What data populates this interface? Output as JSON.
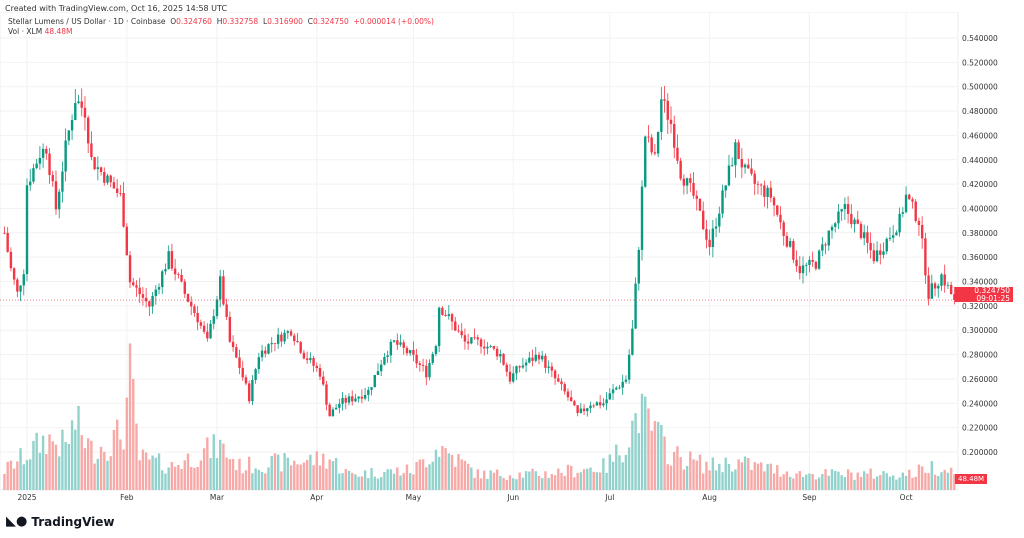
{
  "created": "Created with TradingView.com, Oct 16, 2025 14:58 UTC",
  "legend": {
    "symbol": "Stellar Lumens / US Dollar · 1D · Coinbase",
    "o_label": "O",
    "o": "0.324760",
    "h_label": "H",
    "h": "0.332758",
    "l_label": "L",
    "l": "0.316900",
    "c_label": "C",
    "c": "0.324750",
    "change": "+0.000014 (+0.00%)",
    "vol_label": "Vol · XLM",
    "vol": "48.48M"
  },
  "last_price": "0.324750",
  "countdown": "09:01:25",
  "brand": "TradingView",
  "colors": {
    "up": "#089981",
    "down": "#f23645",
    "up_vol": "#92d2cc",
    "down_vol": "#f7a9a7"
  },
  "chart_data": {
    "type": "candlestick",
    "title": "Stellar Lumens / US Dollar · 1D · Coinbase",
    "ylim": [
      0.19,
      0.545
    ],
    "y_ticks": [
      "0.540000",
      "0.520000",
      "0.500000",
      "0.480000",
      "0.460000",
      "0.440000",
      "0.420000",
      "0.400000",
      "0.380000",
      "0.360000",
      "0.340000",
      "0.320000",
      "0.300000",
      "0.280000",
      "0.260000",
      "0.240000",
      "0.220000",
      "0.200000"
    ],
    "x_ticks": [
      {
        "label": "2025",
        "day": 0
      },
      {
        "label": "Feb",
        "day": 31
      },
      {
        "label": "Mar",
        "day": 59
      },
      {
        "label": "Apr",
        "day": 90
      },
      {
        "label": "May",
        "day": 120
      },
      {
        "label": "Jun",
        "day": 151
      },
      {
        "label": "Jul",
        "day": 181
      },
      {
        "label": "Aug",
        "day": 212
      },
      {
        "label": "Sep",
        "day": 243
      },
      {
        "label": "Oct",
        "day": 273
      }
    ],
    "day_range": [
      -7,
      288
    ],
    "close_anchors_day_price": [
      [
        -7,
        0.38
      ],
      [
        -5,
        0.35
      ],
      [
        -3,
        0.33
      ],
      [
        -1,
        0.35
      ],
      [
        0,
        0.42
      ],
      [
        4,
        0.445
      ],
      [
        6,
        0.45
      ],
      [
        9,
        0.4
      ],
      [
        12,
        0.45
      ],
      [
        15,
        0.49
      ],
      [
        18,
        0.48
      ],
      [
        20,
        0.44
      ],
      [
        23,
        0.43
      ],
      [
        26,
        0.42
      ],
      [
        29,
        0.41
      ],
      [
        30,
        0.39
      ],
      [
        32,
        0.34
      ],
      [
        35,
        0.33
      ],
      [
        38,
        0.32
      ],
      [
        41,
        0.34
      ],
      [
        44,
        0.36
      ],
      [
        49,
        0.33
      ],
      [
        53,
        0.31
      ],
      [
        56,
        0.29
      ],
      [
        60,
        0.34
      ],
      [
        63,
        0.29
      ],
      [
        66,
        0.27
      ],
      [
        69,
        0.245
      ],
      [
        72,
        0.28
      ],
      [
        76,
        0.29
      ],
      [
        82,
        0.3
      ],
      [
        86,
        0.28
      ],
      [
        91,
        0.265
      ],
      [
        94,
        0.23
      ],
      [
        97,
        0.24
      ],
      [
        102,
        0.245
      ],
      [
        106,
        0.25
      ],
      [
        111,
        0.28
      ],
      [
        114,
        0.29
      ],
      [
        119,
        0.28
      ],
      [
        124,
        0.265
      ],
      [
        127,
        0.29
      ],
      [
        128,
        0.32
      ],
      [
        131,
        0.31
      ],
      [
        136,
        0.29
      ],
      [
        141,
        0.29
      ],
      [
        147,
        0.28
      ],
      [
        150,
        0.26
      ],
      [
        153,
        0.27
      ],
      [
        159,
        0.28
      ],
      [
        164,
        0.26
      ],
      [
        168,
        0.245
      ],
      [
        171,
        0.23
      ],
      [
        175,
        0.24
      ],
      [
        179,
        0.24
      ],
      [
        182,
        0.25
      ],
      [
        186,
        0.26
      ],
      [
        188,
        0.3
      ],
      [
        190,
        0.37
      ],
      [
        192,
        0.46
      ],
      [
        195,
        0.44
      ],
      [
        197,
        0.49
      ],
      [
        200,
        0.47
      ],
      [
        203,
        0.43
      ],
      [
        207,
        0.41
      ],
      [
        212,
        0.37
      ],
      [
        215,
        0.4
      ],
      [
        220,
        0.45
      ],
      [
        223,
        0.43
      ],
      [
        226,
        0.42
      ],
      [
        231,
        0.41
      ],
      [
        235,
        0.38
      ],
      [
        240,
        0.35
      ],
      [
        245,
        0.355
      ],
      [
        249,
        0.38
      ],
      [
        254,
        0.4
      ],
      [
        259,
        0.38
      ],
      [
        263,
        0.36
      ],
      [
        266,
        0.37
      ],
      [
        271,
        0.39
      ],
      [
        273,
        0.41
      ],
      [
        277,
        0.39
      ],
      [
        280,
        0.33
      ],
      [
        284,
        0.345
      ],
      [
        288,
        0.32475
      ]
    ],
    "volume_anchors_day_millions": [
      [
        -7,
        50
      ],
      [
        0,
        90
      ],
      [
        6,
        130
      ],
      [
        12,
        110
      ],
      [
        15,
        170
      ],
      [
        20,
        100
      ],
      [
        26,
        120
      ],
      [
        30,
        150
      ],
      [
        32,
        285
      ],
      [
        35,
        80
      ],
      [
        45,
        60
      ],
      [
        56,
        100
      ],
      [
        60,
        110
      ],
      [
        66,
        60
      ],
      [
        94,
        80
      ],
      [
        100,
        40
      ],
      [
        120,
        50
      ],
      [
        128,
        110
      ],
      [
        140,
        40
      ],
      [
        160,
        40
      ],
      [
        180,
        60
      ],
      [
        186,
        120
      ],
      [
        190,
        200
      ],
      [
        193,
        170
      ],
      [
        200,
        90
      ],
      [
        212,
        60
      ],
      [
        220,
        70
      ],
      [
        240,
        40
      ],
      [
        260,
        40
      ],
      [
        275,
        40
      ],
      [
        280,
        60
      ],
      [
        288,
        48.48
      ]
    ]
  }
}
